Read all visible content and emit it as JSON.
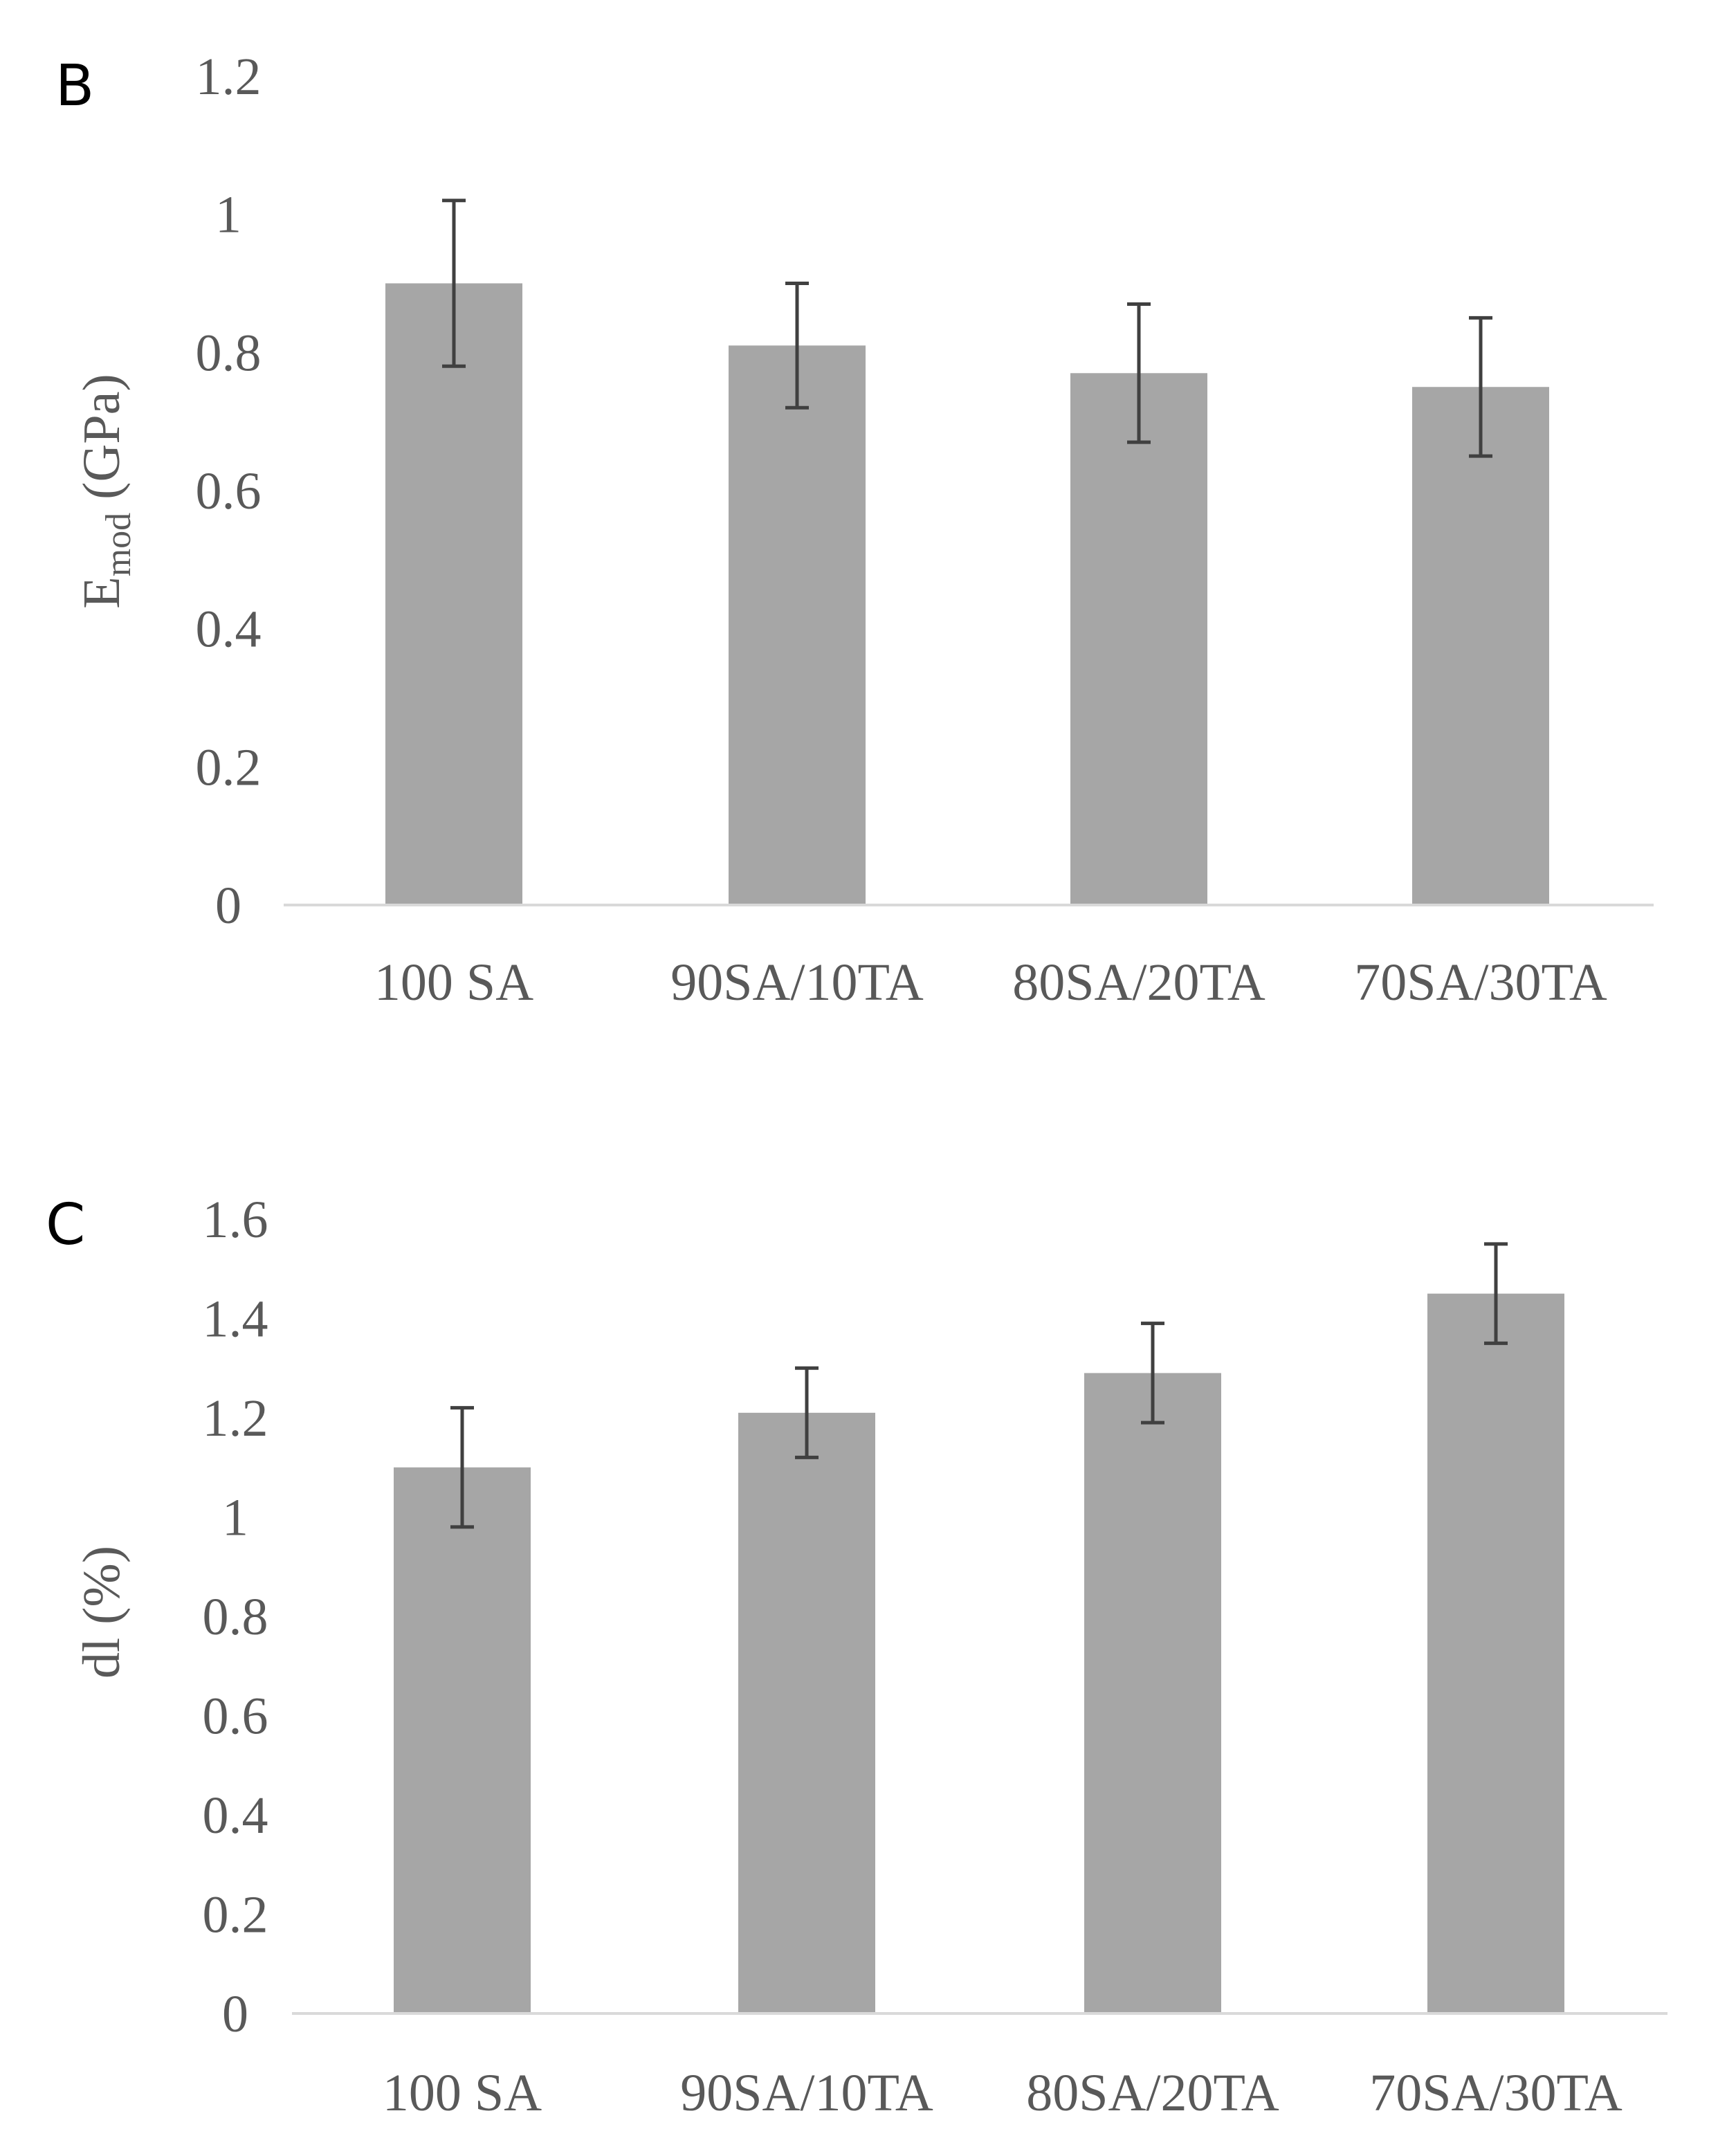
{
  "colors": {
    "bar": "#a6a6a6",
    "error_bar": "#404040",
    "text": "#595959",
    "axis_line": "#d9d9d9"
  },
  "chart_data": [
    {
      "panel": "B",
      "type": "bar",
      "title": "",
      "categories": [
        "100 SA",
        "90SA/10TA",
        "80SA/20TA",
        "70SA/30TA"
      ],
      "values": [
        0.9,
        0.81,
        0.77,
        0.75
      ],
      "error": [
        0.12,
        0.09,
        0.1,
        0.1
      ],
      "ylabel_main": "E",
      "ylabel_sub": "mod",
      "ylabel_unit": " (GPa)",
      "xlabel": "",
      "ylim": [
        0,
        1.2
      ],
      "yticks": [
        "0",
        "0.2",
        "0.4",
        "0.6",
        "0.8",
        "1",
        "1.2"
      ],
      "grid": false,
      "legend": "none"
    },
    {
      "panel": "C",
      "type": "bar",
      "title": "",
      "categories": [
        "100 SA",
        "90SA/10TA",
        "80SA/20TA",
        "70SA/30TA"
      ],
      "values": [
        1.1,
        1.21,
        1.29,
        1.45
      ],
      "error": [
        0.12,
        0.09,
        0.1,
        0.1
      ],
      "ylabel_main": "dl (%)",
      "ylabel_sub": "",
      "ylabel_unit": "",
      "xlabel": "",
      "ylim": [
        0,
        1.6
      ],
      "yticks": [
        "0",
        "0.2",
        "0.4",
        "0.6",
        "0.8",
        "1",
        "1.2",
        "1.4",
        "1.6"
      ],
      "grid": false,
      "legend": "none"
    }
  ]
}
